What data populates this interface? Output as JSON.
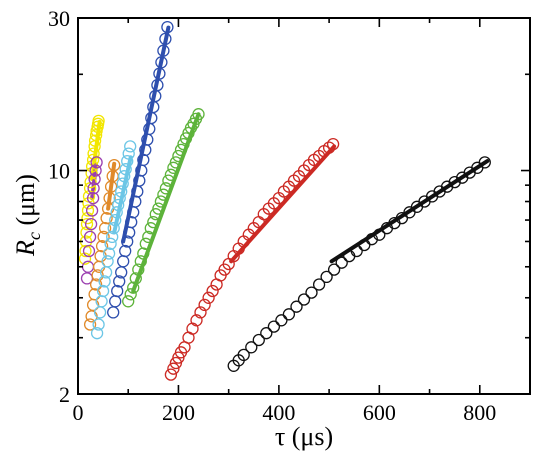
{
  "chart_data": {
    "type": "scatter",
    "title": "",
    "xlabel": "τ (μs)",
    "ylabel_main": "R",
    "ylabel_sub": "c",
    "ylabel_unit": " (μm)",
    "xlim": [
      0,
      900
    ],
    "ylim": [
      2,
      30
    ],
    "yscale": "log",
    "x_ticks": [
      0,
      200,
      400,
      600,
      800
    ],
    "x_minor_ticks": [
      100,
      300,
      500,
      700
    ],
    "y_tick_labels": [
      2,
      10,
      30
    ],
    "y_minor_ticks": [
      3,
      4,
      5,
      6,
      7,
      8,
      9,
      20
    ],
    "grid": false,
    "legend": "none",
    "series": [
      {
        "color": "#f2e600",
        "fit_color": "#f2e600",
        "fit": [
          [
            28,
            9.4
          ],
          [
            43,
            14.2
          ]
        ],
        "points": [
          [
            14,
            5.3
          ],
          [
            15,
            5.6
          ],
          [
            16,
            6.0
          ],
          [
            17,
            6.4
          ],
          [
            18,
            6.8
          ],
          [
            19,
            7.1
          ],
          [
            20,
            7.5
          ],
          [
            21,
            7.9
          ],
          [
            22,
            8.3
          ],
          [
            24,
            8.8
          ],
          [
            25,
            9.2
          ],
          [
            27,
            9.8
          ],
          [
            28,
            10.3
          ],
          [
            30,
            10.8
          ],
          [
            31,
            11.3
          ],
          [
            33,
            11.9
          ],
          [
            34,
            12.4
          ],
          [
            36,
            12.9
          ],
          [
            37,
            13.3
          ],
          [
            39,
            13.7
          ],
          [
            40,
            14.0
          ],
          [
            41,
            14.3
          ]
        ]
      },
      {
        "color": "#9b3fb0",
        "fit_color": "#9b3fb0",
        "fit": [
          [
            28,
            8.2
          ],
          [
            36,
            10.4
          ]
        ],
        "points": [
          [
            18,
            4.6
          ],
          [
            20,
            5.0
          ],
          [
            22,
            5.6
          ],
          [
            24,
            6.2
          ],
          [
            26,
            6.8
          ],
          [
            28,
            7.5
          ],
          [
            30,
            8.2
          ],
          [
            31,
            8.8
          ],
          [
            33,
            9.4
          ],
          [
            35,
            10.0
          ],
          [
            37,
            10.6
          ]
        ]
      },
      {
        "color": "#e08a2a",
        "fit_color": "#e08a2a",
        "fit": [
          [
            60,
            7.6
          ],
          [
            72,
            10.5
          ]
        ],
        "points": [
          [
            24,
            3.3
          ],
          [
            27,
            3.5
          ],
          [
            30,
            3.8
          ],
          [
            33,
            4.1
          ],
          [
            36,
            4.4
          ],
          [
            39,
            4.7
          ],
          [
            42,
            5.0
          ],
          [
            45,
            5.4
          ],
          [
            48,
            5.8
          ],
          [
            51,
            6.2
          ],
          [
            54,
            6.6
          ],
          [
            57,
            7.1
          ],
          [
            60,
            7.6
          ],
          [
            63,
            8.2
          ],
          [
            66,
            8.9
          ],
          [
            69,
            9.6
          ],
          [
            72,
            10.4
          ]
        ]
      },
      {
        "color": "#6cc6e6",
        "fit_color": "#6cc6e6",
        "fit": [
          [
            72,
            6.4
          ],
          [
            105,
            11.0
          ]
        ],
        "points": [
          [
            38,
            3.1
          ],
          [
            41,
            3.3
          ],
          [
            44,
            3.6
          ],
          [
            47,
            3.9
          ],
          [
            50,
            4.2
          ],
          [
            53,
            4.5
          ],
          [
            56,
            4.8
          ],
          [
            59,
            5.2
          ],
          [
            62,
            5.5
          ],
          [
            65,
            5.9
          ],
          [
            68,
            6.2
          ],
          [
            71,
            6.6
          ],
          [
            74,
            7.0
          ],
          [
            77,
            7.4
          ],
          [
            80,
            7.8
          ],
          [
            83,
            8.2
          ],
          [
            86,
            8.6
          ],
          [
            89,
            9.1
          ],
          [
            92,
            9.6
          ],
          [
            95,
            10.1
          ],
          [
            98,
            10.7
          ],
          [
            101,
            11.3
          ],
          [
            104,
            11.9
          ]
        ]
      },
      {
        "color": "#2e4fae",
        "fit_color": "#2e4fae",
        "fit": [
          [
            90,
            6.0
          ],
          [
            180,
            28.0
          ]
        ],
        "points": [
          [
            70,
            3.6
          ],
          [
            74,
            3.9
          ],
          [
            78,
            4.2
          ],
          [
            82,
            4.5
          ],
          [
            86,
            4.8
          ],
          [
            90,
            5.2
          ],
          [
            94,
            5.6
          ],
          [
            98,
            6.0
          ],
          [
            102,
            6.4
          ],
          [
            106,
            6.9
          ],
          [
            110,
            7.4
          ],
          [
            114,
            8.0
          ],
          [
            118,
            8.6
          ],
          [
            122,
            9.3
          ],
          [
            126,
            10.0
          ],
          [
            130,
            10.8
          ],
          [
            134,
            11.6
          ],
          [
            138,
            12.5
          ],
          [
            142,
            13.5
          ],
          [
            146,
            14.6
          ],
          [
            150,
            15.8
          ],
          [
            154,
            17.1
          ],
          [
            158,
            18.5
          ],
          [
            162,
            20.1
          ],
          [
            166,
            21.8
          ],
          [
            170,
            23.7
          ],
          [
            174,
            25.8
          ],
          [
            178,
            28.1
          ]
        ]
      },
      {
        "color": "#5db33a",
        "fit_color": "#5db33a",
        "fit": [
          [
            110,
            4.2
          ],
          [
            240,
            15.0
          ]
        ],
        "points": [
          [
            100,
            3.9
          ],
          [
            105,
            4.1
          ],
          [
            110,
            4.3
          ],
          [
            115,
            4.6
          ],
          [
            120,
            4.9
          ],
          [
            125,
            5.2
          ],
          [
            130,
            5.5
          ],
          [
            135,
            5.9
          ],
          [
            140,
            6.2
          ],
          [
            145,
            6.6
          ],
          [
            150,
            6.9
          ],
          [
            155,
            7.3
          ],
          [
            160,
            7.6
          ],
          [
            165,
            8.0
          ],
          [
            170,
            8.4
          ],
          [
            175,
            8.8
          ],
          [
            180,
            9.3
          ],
          [
            185,
            9.7
          ],
          [
            190,
            10.2
          ],
          [
            195,
            10.6
          ],
          [
            200,
            11.1
          ],
          [
            205,
            11.6
          ],
          [
            210,
            12.1
          ],
          [
            215,
            12.6
          ],
          [
            220,
            13.1
          ],
          [
            225,
            13.6
          ],
          [
            230,
            14.0
          ],
          [
            235,
            14.5
          ],
          [
            240,
            15.0
          ]
        ]
      },
      {
        "color": "#cc2a24",
        "fit_color": "#cc2a24",
        "fit": [
          [
            305,
            5.2
          ],
          [
            510,
            11.9
          ]
        ],
        "points": [
          [
            185,
            2.3
          ],
          [
            190,
            2.4
          ],
          [
            195,
            2.5
          ],
          [
            200,
            2.6
          ],
          [
            205,
            2.7
          ],
          [
            212,
            2.8
          ],
          [
            220,
            3.0
          ],
          [
            228,
            3.2
          ],
          [
            236,
            3.4
          ],
          [
            244,
            3.6
          ],
          [
            252,
            3.8
          ],
          [
            260,
            4.0
          ],
          [
            268,
            4.2
          ],
          [
            276,
            4.4
          ],
          [
            284,
            4.7
          ],
          [
            292,
            4.9
          ],
          [
            300,
            5.1
          ],
          [
            310,
            5.4
          ],
          [
            320,
            5.7
          ],
          [
            330,
            6.0
          ],
          [
            340,
            6.3
          ],
          [
            350,
            6.6
          ],
          [
            360,
            6.9
          ],
          [
            370,
            7.3
          ],
          [
            380,
            7.6
          ],
          [
            390,
            7.9
          ],
          [
            400,
            8.2
          ],
          [
            410,
            8.6
          ],
          [
            420,
            8.9
          ],
          [
            430,
            9.3
          ],
          [
            440,
            9.6
          ],
          [
            450,
            10.0
          ],
          [
            460,
            10.4
          ],
          [
            470,
            10.8
          ],
          [
            480,
            11.1
          ],
          [
            490,
            11.5
          ],
          [
            500,
            11.8
          ],
          [
            508,
            12.1
          ]
        ]
      },
      {
        "color": "#111111",
        "fit_color": "#111111",
        "fit": [
          [
            505,
            5.2
          ],
          [
            815,
            10.7
          ]
        ],
        "points": [
          [
            310,
            2.45
          ],
          [
            320,
            2.55
          ],
          [
            330,
            2.65
          ],
          [
            345,
            2.8
          ],
          [
            360,
            2.95
          ],
          [
            375,
            3.1
          ],
          [
            390,
            3.25
          ],
          [
            405,
            3.4
          ],
          [
            420,
            3.55
          ],
          [
            435,
            3.75
          ],
          [
            450,
            3.95
          ],
          [
            465,
            4.15
          ],
          [
            480,
            4.4
          ],
          [
            495,
            4.65
          ],
          [
            510,
            4.9
          ],
          [
            525,
            5.15
          ],
          [
            540,
            5.4
          ],
          [
            555,
            5.6
          ],
          [
            570,
            5.85
          ],
          [
            585,
            6.1
          ],
          [
            600,
            6.3
          ],
          [
            615,
            6.6
          ],
          [
            630,
            6.85
          ],
          [
            645,
            7.1
          ],
          [
            660,
            7.4
          ],
          [
            675,
            7.7
          ],
          [
            690,
            8.0
          ],
          [
            705,
            8.3
          ],
          [
            720,
            8.6
          ],
          [
            735,
            8.9
          ],
          [
            750,
            9.2
          ],
          [
            765,
            9.5
          ],
          [
            780,
            9.85
          ],
          [
            795,
            10.2
          ],
          [
            810,
            10.6
          ]
        ]
      }
    ]
  }
}
